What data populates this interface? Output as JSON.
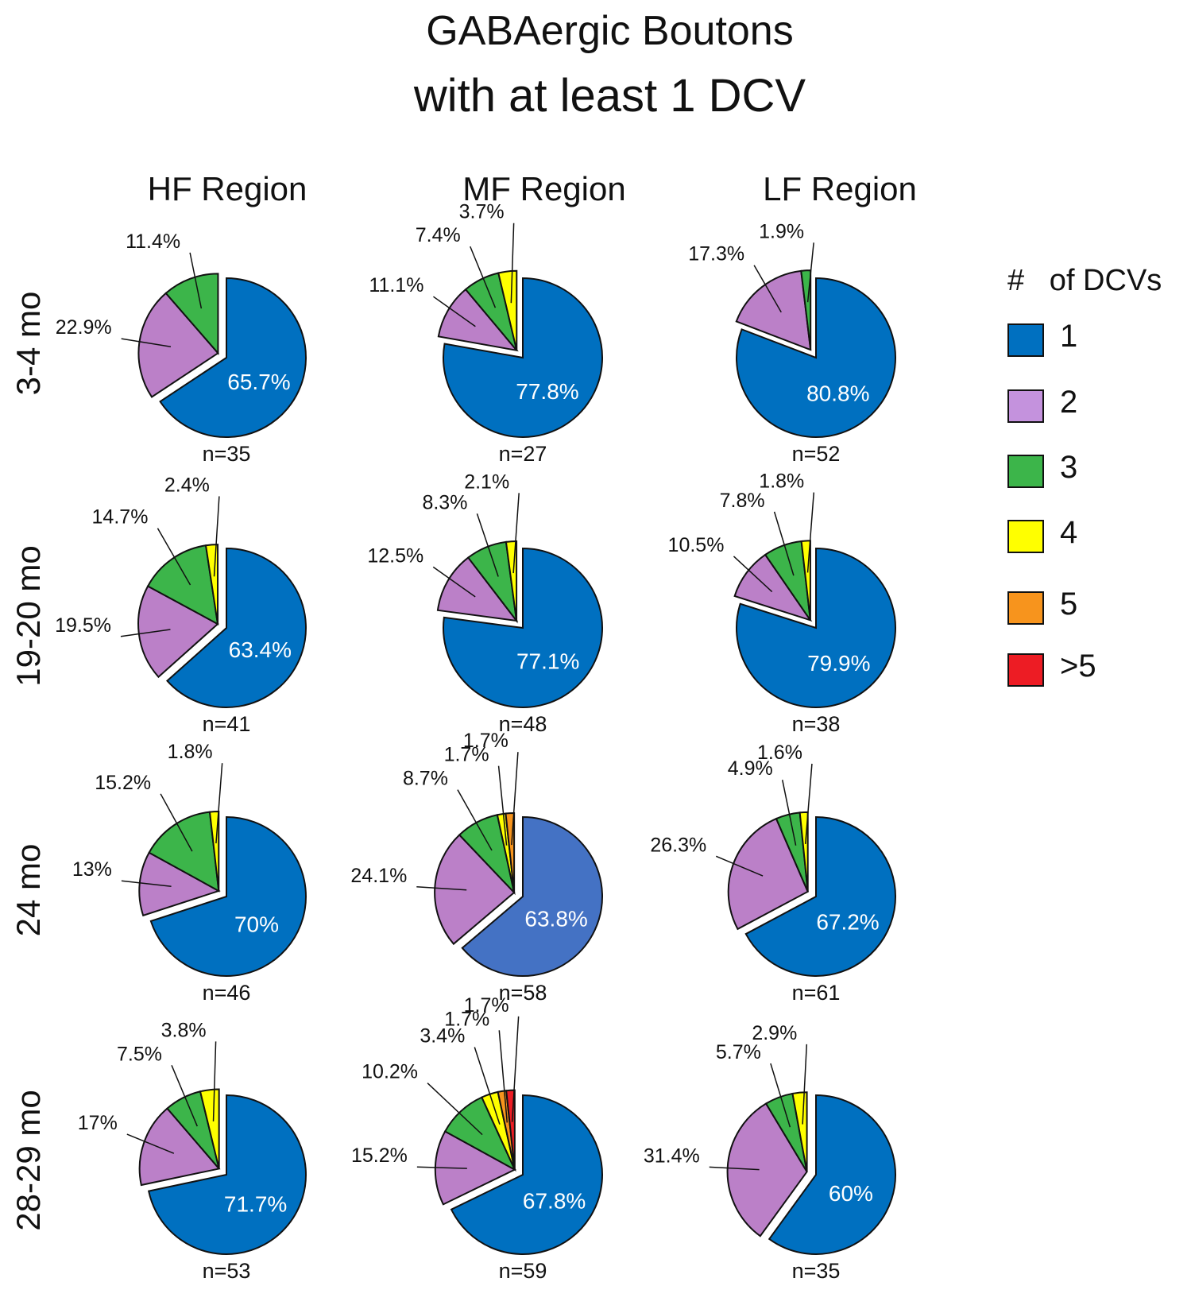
{
  "title_line1": "GABAergic Boutons",
  "title_line2": "with at least 1 DCV",
  "columns": [
    "HF Region",
    "MF Region",
    "LF Region"
  ],
  "rows": [
    "3-4 mo",
    "19-20 mo",
    "24 mo",
    "28-29 mo"
  ],
  "legend": {
    "title": "#   of DCVs",
    "items": [
      {
        "label": "1",
        "color": "#0070c0"
      },
      {
        "label": "2",
        "color": "#c492dd"
      },
      {
        "label": "3",
        "color": "#3cb54a"
      },
      {
        "label": "4",
        "color": "#ffff00"
      },
      {
        "label": "5",
        "color": "#f7941d"
      },
      {
        "label": ">5",
        "color": "#ed1c24"
      }
    ]
  },
  "colors": {
    "one": "#0070c0",
    "one_alt": "#4472c4",
    "two": "#bb80c8",
    "three": "#3cb54a",
    "four": "#ffff00",
    "five": "#f7941d",
    "more": "#ed1c24"
  },
  "chart_data": [
    {
      "type": "pie",
      "row": "3-4 mo",
      "column": "HF Region",
      "n_label": "n=35",
      "slices": [
        {
          "category": "1",
          "value": 65.7,
          "label": "65.7%"
        },
        {
          "category": "2",
          "value": 22.9,
          "label": "22.9%"
        },
        {
          "category": "3",
          "value": 11.4,
          "label": "11.4%"
        }
      ]
    },
    {
      "type": "pie",
      "row": "3-4 mo",
      "column": "MF Region",
      "n_label": "n=27",
      "slices": [
        {
          "category": "1",
          "value": 77.8,
          "label": "77.8%"
        },
        {
          "category": "2",
          "value": 11.1,
          "label": "11.1%"
        },
        {
          "category": "3",
          "value": 7.4,
          "label": "7.4%"
        },
        {
          "category": "4",
          "value": 3.7,
          "label": "3.7%"
        }
      ]
    },
    {
      "type": "pie",
      "row": "3-4 mo",
      "column": "LF Region",
      "n_label": "n=52",
      "slices": [
        {
          "category": "1",
          "value": 80.8,
          "label": "80.8%"
        },
        {
          "category": "2",
          "value": 17.3,
          "label": "17.3%"
        },
        {
          "category": "3",
          "value": 1.9,
          "label": "1.9%"
        }
      ]
    },
    {
      "type": "pie",
      "row": "19-20 mo",
      "column": "HF Region",
      "n_label": "n=41",
      "slices": [
        {
          "category": "1",
          "value": 63.4,
          "label": "63.4%"
        },
        {
          "category": "2",
          "value": 19.5,
          "label": "19.5%"
        },
        {
          "category": "3",
          "value": 14.7,
          "label": "14.7%"
        },
        {
          "category": "4",
          "value": 2.4,
          "label": "2.4%"
        }
      ]
    },
    {
      "type": "pie",
      "row": "19-20 mo",
      "column": "MF Region",
      "n_label": "n=48",
      "slices": [
        {
          "category": "1",
          "value": 77.1,
          "label": "77.1%"
        },
        {
          "category": "2",
          "value": 12.5,
          "label": "12.5%"
        },
        {
          "category": "3",
          "value": 8.3,
          "label": "8.3%"
        },
        {
          "category": "4",
          "value": 2.1,
          "label": "2.1%"
        }
      ]
    },
    {
      "type": "pie",
      "row": "19-20 mo",
      "column": "LF Region",
      "n_label": "n=38",
      "slices": [
        {
          "category": "1",
          "value": 79.9,
          "label": "79.9%"
        },
        {
          "category": "2",
          "value": 10.5,
          "label": "10.5%"
        },
        {
          "category": "3",
          "value": 7.8,
          "label": "7.8%"
        },
        {
          "category": "4",
          "value": 1.8,
          "label": "1.8%"
        }
      ]
    },
    {
      "type": "pie",
      "row": "24 mo",
      "column": "HF Region",
      "n_label": "n=46",
      "slices": [
        {
          "category": "1",
          "value": 70,
          "label": "70%"
        },
        {
          "category": "2",
          "value": 13,
          "label": "13%"
        },
        {
          "category": "3",
          "value": 15.2,
          "label": "15.2%"
        },
        {
          "category": "4",
          "value": 1.8,
          "label": "1.8%"
        }
      ]
    },
    {
      "type": "pie",
      "row": "24 mo",
      "column": "MF Region",
      "n_label": "n=58",
      "slices": [
        {
          "category": "1",
          "value": 63.8,
          "label": "63.8%",
          "alt_color": true
        },
        {
          "category": "2",
          "value": 24.1,
          "label": "24.1%"
        },
        {
          "category": "3",
          "value": 8.7,
          "label": "8.7%"
        },
        {
          "category": "4",
          "value": 1.7,
          "label": "1.7%"
        },
        {
          "category": "5",
          "value": 1.7,
          "label": "1.7%"
        }
      ]
    },
    {
      "type": "pie",
      "row": "24 mo",
      "column": "LF Region",
      "n_label": "n=61",
      "slices": [
        {
          "category": "1",
          "value": 67.2,
          "label": "67.2%"
        },
        {
          "category": "2",
          "value": 26.3,
          "label": "26.3%"
        },
        {
          "category": "3",
          "value": 4.9,
          "label": "4.9%"
        },
        {
          "category": "4",
          "value": 1.6,
          "label": "1.6%"
        }
      ]
    },
    {
      "type": "pie",
      "row": "28-29 mo",
      "column": "HF Region",
      "n_label": "n=53",
      "slices": [
        {
          "category": "1",
          "value": 71.7,
          "label": "71.7%"
        },
        {
          "category": "2",
          "value": 17,
          "label": "17%"
        },
        {
          "category": "3",
          "value": 7.5,
          "label": "7.5%"
        },
        {
          "category": "4",
          "value": 3.8,
          "label": "3.8%"
        }
      ]
    },
    {
      "type": "pie",
      "row": "28-29 mo",
      "column": "MF Region",
      "n_label": "n=59",
      "slices": [
        {
          "category": "1",
          "value": 67.8,
          "label": "67.8%"
        },
        {
          "category": "2",
          "value": 15.2,
          "label": "15.2%"
        },
        {
          "category": "3",
          "value": 10.2,
          "label": "10.2%"
        },
        {
          "category": "4",
          "value": 3.4,
          "label": "3.4%"
        },
        {
          "category": "5",
          "value": 1.7,
          "label": "1.7%"
        },
        {
          "category": ">5",
          "value": 1.7,
          "label": "1.7%"
        }
      ]
    },
    {
      "type": "pie",
      "row": "28-29 mo",
      "column": "LF Region",
      "n_label": "n=35",
      "slices": [
        {
          "category": "1",
          "value": 60,
          "label": "60%"
        },
        {
          "category": "2",
          "value": 31.4,
          "label": "31.4%"
        },
        {
          "category": "3",
          "value": 5.7,
          "label": "5.7%"
        },
        {
          "category": "4",
          "value": 2.9,
          "label": "2.9%"
        }
      ]
    }
  ]
}
